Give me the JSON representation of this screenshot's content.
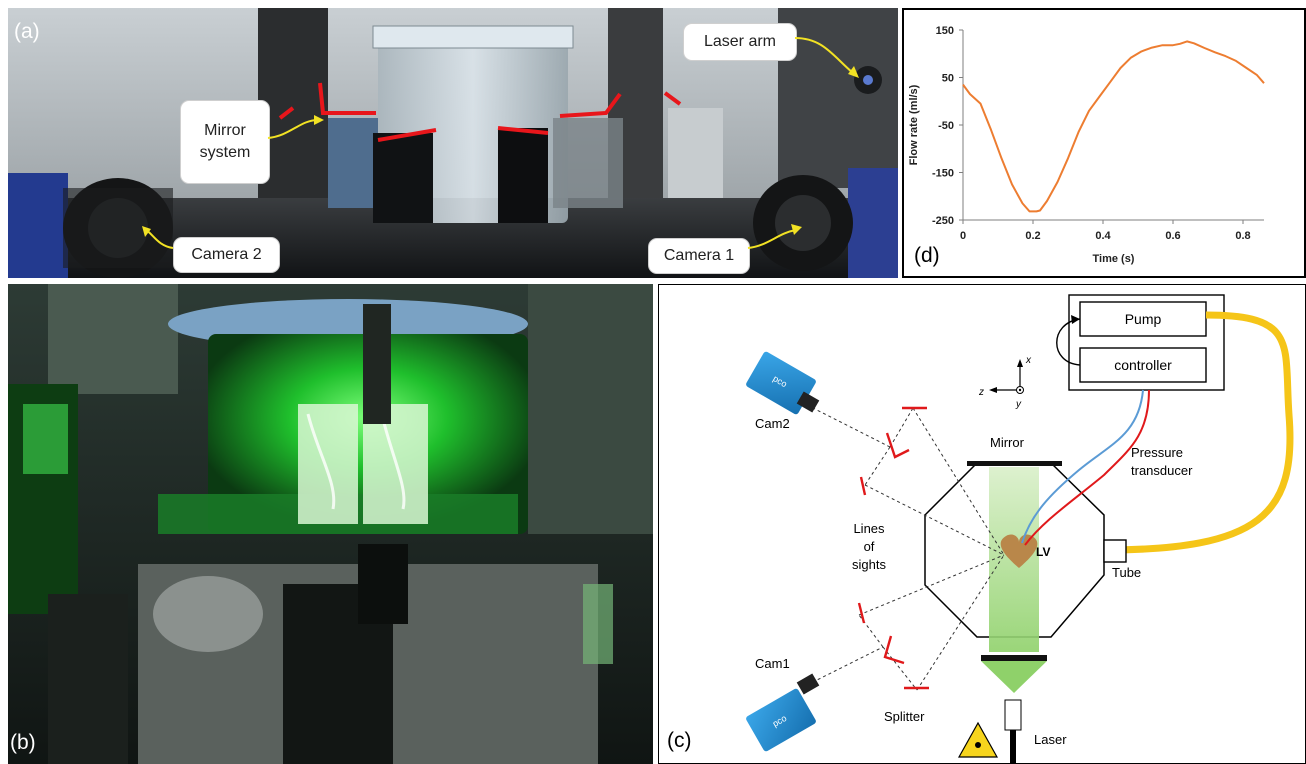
{
  "panel_a": {
    "label": "(a)",
    "callouts": {
      "mirror_system": "Mirror system",
      "laser_arm": "Laser arm",
      "camera_2": "Camera 2",
      "camera_1": "Camera 1"
    }
  },
  "panel_b": {
    "label": "(b)"
  },
  "panel_c": {
    "label": "(c)",
    "labels": {
      "pump": "Pump",
      "controller": "controller",
      "cam2": "Cam2",
      "cam1": "Cam1",
      "mirror": "Mirror",
      "pressure_transducer_1": "Pressure",
      "pressure_transducer_2": "transducer",
      "lines_1": "Lines",
      "lines_2": "of",
      "lines_3": "sights",
      "lv": "LV",
      "tube": "Tube",
      "splitter": "Splitter",
      "laser": "Laser",
      "axis_x": "x",
      "axis_y": "y",
      "axis_z": "z",
      "camera_brand": "pco"
    },
    "colors": {
      "laser_beam": "#8fd16a",
      "tube": "#f5c518",
      "mirror": "#e0191b",
      "camera": "#1f8fd6",
      "heart": "#b9874a",
      "line_blue": "#5b9bd5",
      "line_red": "#e0191b"
    }
  },
  "panel_d": {
    "label": "(d)",
    "chart_data": {
      "type": "line",
      "title": "",
      "xlabel": "Time (s)",
      "ylabel": "Flow rate (ml/s)",
      "xlim": [
        0,
        0.86
      ],
      "ylim": [
        -250,
        150
      ],
      "xticks": [
        0,
        0.2,
        0.4,
        0.6,
        0.8
      ],
      "yticks": [
        150,
        50,
        -50,
        -150,
        -250
      ],
      "xtick_labels": [
        "0",
        "0.2",
        "0.4",
        "0.6",
        "0.8"
      ],
      "ytick_labels": [
        "150",
        "50",
        "-50",
        "-150",
        "-250"
      ],
      "grid": false,
      "legend": "none",
      "series": [
        {
          "color": "#ed7d31",
          "x": [
            0,
            0.02,
            0.05,
            0.08,
            0.11,
            0.14,
            0.17,
            0.19,
            0.21,
            0.22,
            0.24,
            0.27,
            0.3,
            0.33,
            0.36,
            0.39,
            0.42,
            0.45,
            0.48,
            0.51,
            0.54,
            0.57,
            0.6,
            0.62,
            0.64,
            0.66,
            0.69,
            0.72,
            0.75,
            0.78,
            0.81,
            0.84,
            0.86
          ],
          "y": [
            35,
            15,
            -5,
            -60,
            -120,
            -175,
            -215,
            -232,
            -232,
            -230,
            -210,
            -170,
            -120,
            -65,
            -20,
            10,
            40,
            70,
            92,
            105,
            113,
            118,
            118,
            121,
            126,
            122,
            112,
            103,
            95,
            85,
            70,
            55,
            38
          ]
        }
      ]
    }
  }
}
